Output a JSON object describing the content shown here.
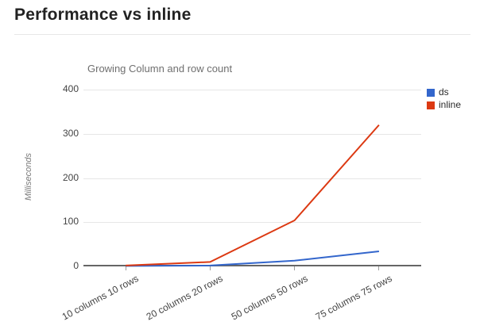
{
  "header": {
    "title": "Performance vs inline"
  },
  "chart_data": {
    "type": "line",
    "title": "Growing Column and row count",
    "xlabel": "",
    "ylabel": "Milliseconds",
    "ylim": [
      0,
      400
    ],
    "yticks": [
      0,
      100,
      200,
      300,
      400
    ],
    "grid": true,
    "legend_position": "right",
    "categories": [
      "10 columns 10 rows",
      "20 columns 20 rows",
      "50 columns 50 rows",
      "75 columns 75 rows"
    ],
    "series": [
      {
        "name": "ds",
        "color": "#3366cc",
        "values": [
          1,
          2,
          13,
          34
        ]
      },
      {
        "name": "inline",
        "color": "#dc3912",
        "values": [
          2,
          10,
          104,
          320
        ]
      }
    ]
  }
}
